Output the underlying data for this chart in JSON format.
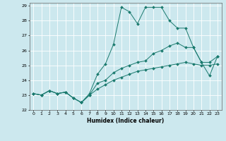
{
  "xlabel": "Humidex (Indice chaleur)",
  "xlim": [
    -0.5,
    23.5
  ],
  "ylim": [
    22,
    29.2
  ],
  "yticks": [
    22,
    23,
    24,
    25,
    26,
    27,
    28,
    29
  ],
  "xticks": [
    0,
    1,
    2,
    3,
    4,
    5,
    6,
    7,
    8,
    9,
    10,
    11,
    12,
    13,
    14,
    15,
    16,
    17,
    18,
    19,
    20,
    21,
    22,
    23
  ],
  "bg_color": "#cce8ee",
  "grid_color": "#ffffff",
  "line_color": "#1a7a6e",
  "line1_x": [
    0,
    1,
    2,
    3,
    4,
    5,
    6,
    7,
    8,
    9,
    10,
    11,
    12,
    13,
    14,
    15,
    16,
    17,
    18,
    19,
    20,
    21,
    22,
    23
  ],
  "line1_y": [
    23.1,
    23.0,
    23.3,
    23.1,
    23.2,
    22.8,
    22.5,
    23.0,
    23.4,
    23.7,
    24.0,
    24.2,
    24.4,
    24.6,
    24.7,
    24.8,
    24.9,
    25.0,
    25.1,
    25.2,
    25.1,
    25.0,
    25.0,
    25.1
  ],
  "line2_x": [
    0,
    1,
    2,
    3,
    4,
    5,
    6,
    7,
    8,
    9,
    10,
    11,
    12,
    13,
    14,
    15,
    16,
    17,
    18,
    19,
    20,
    21,
    22,
    23
  ],
  "line2_y": [
    23.1,
    23.0,
    23.3,
    23.1,
    23.2,
    22.8,
    22.5,
    23.1,
    24.4,
    25.1,
    26.4,
    28.9,
    28.6,
    27.8,
    28.9,
    28.9,
    28.9,
    28.0,
    27.5,
    27.5,
    26.2,
    25.2,
    24.3,
    25.6
  ],
  "line3_x": [
    0,
    1,
    2,
    3,
    4,
    5,
    6,
    7,
    8,
    9,
    10,
    11,
    12,
    13,
    14,
    15,
    16,
    17,
    18,
    19,
    20,
    21,
    22,
    23
  ],
  "line3_y": [
    23.1,
    23.0,
    23.3,
    23.1,
    23.2,
    22.8,
    22.5,
    23.0,
    23.8,
    24.0,
    24.5,
    24.8,
    25.0,
    25.2,
    25.3,
    25.8,
    26.0,
    26.3,
    26.5,
    26.2,
    26.2,
    25.2,
    25.2,
    25.6
  ]
}
